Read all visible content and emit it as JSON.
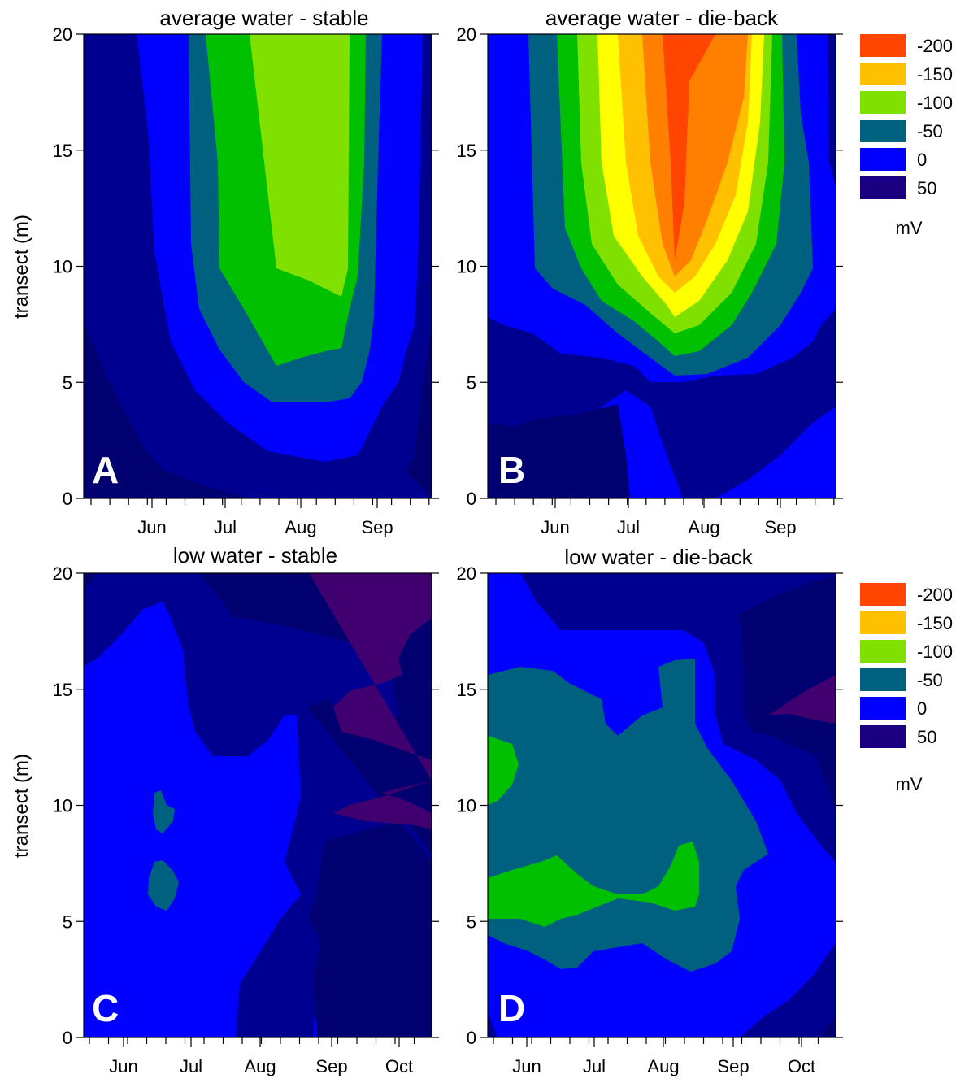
{
  "chart_data": [
    {
      "type": "contour",
      "panel_letter": "A",
      "title": "average water - stable",
      "ylabel": "transect (m)",
      "ylim": [
        0,
        20
      ],
      "yticks": [
        "0",
        "5",
        "10",
        "15",
        "20"
      ],
      "xticks": [
        "Jun",
        "Jul",
        "Aug",
        "Sep"
      ],
      "z_unit": "mV",
      "min_level": "-100",
      "depth_profile": {
        "center_month": "Aug",
        "deepest_value_mV": -120
      }
    },
    {
      "type": "contour",
      "panel_letter": "B",
      "title": "average water - die-back",
      "ylabel": "",
      "ylim": [
        0,
        20
      ],
      "yticks": [
        "0",
        "5",
        "10",
        "15",
        "20"
      ],
      "xticks": [
        "Jun",
        "Jul",
        "Aug",
        "Sep"
      ],
      "z_unit": "mV",
      "min_level": "-200",
      "depth_profile": {
        "center_month": "Aug",
        "deepest_value_mV": -220
      }
    },
    {
      "type": "contour",
      "panel_letter": "C",
      "title": "low water - stable",
      "ylabel": "transect (m)",
      "ylim": [
        0,
        20
      ],
      "yticks": [
        "0",
        "5",
        "10",
        "15",
        "20"
      ],
      "xticks": [
        "Jun",
        "Jul",
        "Aug",
        "Sep",
        "Oct"
      ],
      "z_unit": "mV",
      "min_level": "-50"
    },
    {
      "type": "contour",
      "panel_letter": "D",
      "title": "low water - die-back",
      "ylabel": "",
      "ylim": [
        0,
        20
      ],
      "yticks": [
        "0",
        "5",
        "10",
        "15",
        "20"
      ],
      "xticks": [
        "Jun",
        "Jul",
        "Aug",
        "Sep",
        "Oct"
      ],
      "z_unit": "mV",
      "min_level": "-100"
    }
  ],
  "legend": {
    "unit": "mV",
    "items": [
      {
        "label": "-200",
        "color": "#ff4500"
      },
      {
        "label": "-150",
        "color": "#ffc000"
      },
      {
        "label": "-100",
        "color": "#80e000"
      },
      {
        "label": "-50",
        "color": "#006080"
      },
      {
        "label": "0",
        "color": "#0000ff"
      },
      {
        "label": "50",
        "color": "#1a0080"
      }
    ]
  },
  "colors": {
    "lvl_ge50": "#1a0070",
    "lvl_0_50": "#000090",
    "lvl_-50_0": "#0000ff",
    "lvl_-100_-50": "#006080",
    "lvl_-150_-100": "#00c000",
    "lvl_-100_light": "#80e000",
    "lvl_-150_-180": "#ffc000",
    "lvl_yellow": "#ffff00",
    "lvl_orange": "#ff8000",
    "lvl_red": "#ff4500",
    "purple": "#400070"
  }
}
